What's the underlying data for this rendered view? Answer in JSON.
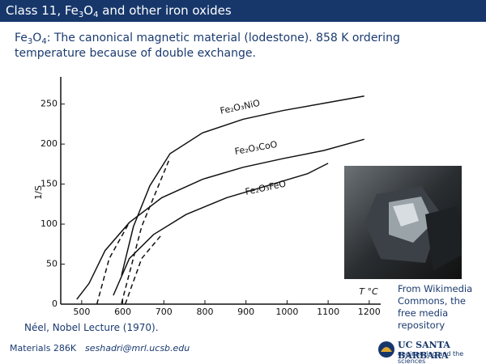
{
  "header": {
    "title_parts": [
      "Class 11, Fe",
      "3",
      "O",
      "4",
      " and other iron oxides"
    ]
  },
  "subtitle_parts": [
    "Fe",
    "3",
    "O",
    "4",
    ": The canonical magnetic material (lodestone). 858 K ordering temperature because of double exchange."
  ],
  "chart_data": {
    "type": "line",
    "x_label": "T °C",
    "y_label": "1/S",
    "xlim": [
      449,
      1228
    ],
    "ylim": [
      0,
      284
    ],
    "xticks": [
      500,
      600,
      700,
      800,
      900,
      1000,
      1100,
      1200
    ],
    "yticks": [
      0,
      50,
      100,
      150,
      200,
      250
    ],
    "color": "#111111",
    "series": [
      {
        "name": "Fe₂O₃NiO",
        "x": [
          597,
          626,
          666,
          715,
          794,
          893,
          991,
          1090,
          1188
        ],
        "values": [
          36,
          97,
          148,
          188,
          214,
          231,
          242,
          251,
          260
        ],
        "dashed_x": [
          597,
          646,
          715
        ],
        "dashed_values": [
          1,
          97,
          183
        ]
      },
      {
        "name": "Fe₂O₃CoO",
        "x": [
          488,
          518,
          557,
          616,
          695,
          794,
          893,
          991,
          1090,
          1188
        ],
        "values": [
          6,
          26,
          67,
          102,
          133,
          156,
          171,
          182,
          192,
          206
        ],
        "dashed_x": [
          537,
          567,
          616
        ],
        "dashed_values": [
          0,
          57,
          102
        ]
      },
      {
        "name": "Fe₂O₃FeO",
        "x": [
          577,
          616,
          675,
          754,
          853,
          952,
          1050,
          1100
        ],
        "values": [
          11,
          57,
          87,
          112,
          133,
          148,
          163,
          176
        ],
        "dashed_x": [
          606,
          646,
          695
        ],
        "dashed_values": [
          0,
          57,
          87
        ]
      }
    ]
  },
  "chart_caption": "Néel, Nobel Lecture (1970).",
  "photo_caption": "From Wikimedia Commons, the free media repository",
  "footer": {
    "course": "Materials 286K",
    "email": "seshadri@mrl.ucsb.edu",
    "logo_line1": "UC SANTA BARBARA",
    "logo_line2": "engineering and the sciences"
  }
}
